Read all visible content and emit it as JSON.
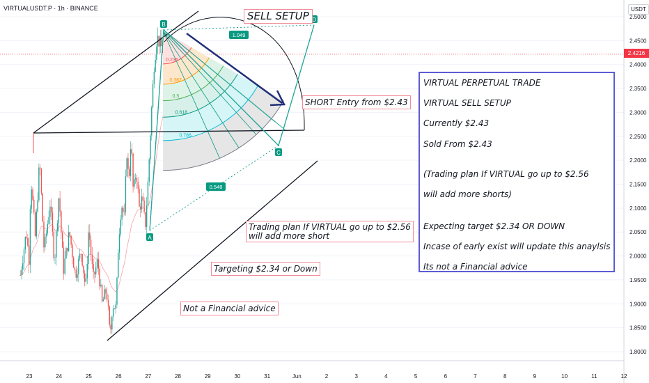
{
  "header": {
    "symbol_line": "VIRTUALUSDT.P · 1h · BINANCE"
  },
  "currency_label": "USDT",
  "last_price": "2.4216",
  "colors": {
    "up": "#26a69a",
    "down": "#ef5350",
    "last_price": "#f23645",
    "info_border": "#5b5bd6",
    "annot_border": "#f28b98",
    "arrow": "#1f2f7a"
  },
  "chart_data": {
    "type": "candlestick",
    "title": "",
    "x_ticks": [
      "23",
      "24",
      "25",
      "26",
      "27",
      "28",
      "29",
      "30",
      "31",
      "Jun",
      "2",
      "3",
      "4",
      "5",
      "6",
      "7",
      "8",
      "9",
      "10",
      "11",
      "12"
    ],
    "y_ticks": [
      "1.8000",
      "1.8500",
      "1.9000",
      "1.9500",
      "2.0000",
      "2.0500",
      "2.1000",
      "2.1500",
      "2.2000",
      "2.2500",
      "2.3000",
      "2.3500",
      "2.4000",
      "2.4500",
      "2.5000"
    ],
    "ylim": [
      1.78,
      2.52
    ],
    "last_price_line": 2.4216,
    "price_path": [
      [
        22.7,
        1.96
      ],
      [
        22.9,
        2.05
      ],
      [
        23.0,
        1.99
      ],
      [
        23.05,
        2.17
      ],
      [
        23.2,
        2.04
      ],
      [
        23.35,
        2.2
      ],
      [
        23.5,
        2.01
      ],
      [
        23.7,
        2.11
      ],
      [
        23.85,
        1.99
      ],
      [
        24.0,
        2.13
      ],
      [
        24.15,
        1.97
      ],
      [
        24.35,
        2.05
      ],
      [
        24.55,
        1.96
      ],
      [
        24.75,
        2.01
      ],
      [
        24.9,
        1.93
      ],
      [
        25.0,
        2.06
      ],
      [
        25.15,
        1.95
      ],
      [
        25.3,
        1.99
      ],
      [
        25.45,
        1.9
      ],
      [
        25.6,
        1.93
      ],
      [
        25.72,
        1.83
      ],
      [
        25.8,
        1.9
      ],
      [
        25.92,
        1.89
      ],
      [
        26.0,
        2.03
      ],
      [
        26.1,
        2.11
      ],
      [
        26.2,
        2.08
      ],
      [
        26.28,
        2.22
      ],
      [
        26.35,
        2.15
      ],
      [
        26.42,
        2.25
      ],
      [
        26.5,
        2.13
      ],
      [
        26.6,
        2.18
      ],
      [
        26.7,
        2.1
      ],
      [
        26.8,
        2.12
      ],
      [
        26.9,
        2.06
      ],
      [
        27.0,
        2.16
      ],
      [
        27.1,
        2.29
      ],
      [
        27.2,
        2.4
      ],
      [
        27.3,
        2.46
      ],
      [
        27.35,
        2.45
      ],
      [
        27.5,
        2.43
      ],
      [
        27.6,
        2.44
      ]
    ],
    "fibonacci": {
      "levels": [
        "0.236",
        "0.382",
        "0.5",
        "0.618",
        "0.786"
      ],
      "level_values": [
        0.236,
        0.382,
        0.5,
        0.618,
        0.786
      ]
    },
    "projection_points": {
      "labels": [
        "A",
        "B",
        "C",
        "D"
      ],
      "ratio_labels": [
        "1.049",
        "0.548"
      ]
    }
  },
  "annotations": {
    "sell_setup": "SELL SETUP",
    "short_entry": "SHORT Entry from $2.43",
    "plan_line1": "Trading plan If VIRTUAL go up to $2.56",
    "plan_line2": "will add more short",
    "targeting": "Targeting $2.34 or Down",
    "not_advice": "Not a Financial advice"
  },
  "info_box": {
    "lines": [
      "VIRTUAL PERPETUAL TRADE",
      "VIRTUAL SELL SETUP",
      "Currently $2.43",
      "Sold From $2.43",
      "(Trading plan If VIRTUAL go up to $2.56",
      "will add more shorts)",
      "Expecting target $2.34 OR DOWN",
      "Incase of early exist will update this anaylsis",
      "Its not a Financial advice"
    ]
  }
}
